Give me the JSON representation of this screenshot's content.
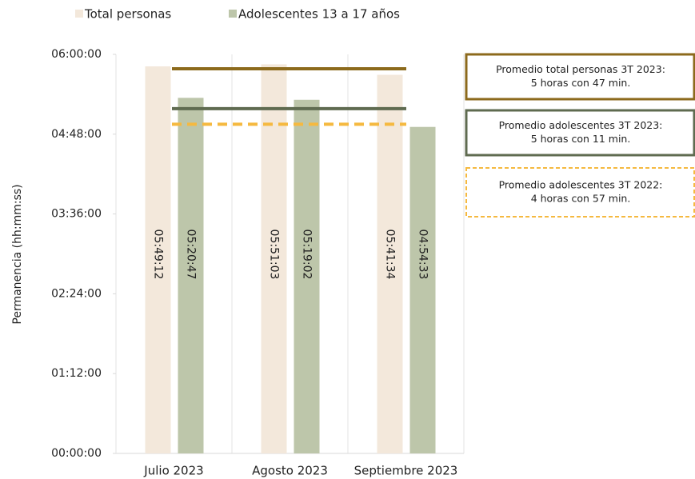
{
  "chart_data": {
    "type": "bar",
    "categories": [
      "Julio 2023",
      "Agosto 2023",
      "Septiembre 2023"
    ],
    "series": [
      {
        "name": "Total personas",
        "color": "#f3e8db",
        "values": [
          20952,
          21063,
          20494
        ],
        "value_labels": [
          "05:49:12",
          "05:51:03",
          "05:41:34"
        ]
      },
      {
        "name": "Adolescentes 13 a 17 años",
        "color": "#bdc6aa",
        "values": [
          19247,
          19142,
          17673
        ],
        "value_labels": [
          "05:20:47",
          "05:19:02",
          "04:54:33"
        ]
      }
    ],
    "y_label": "Permanencia (hh:mm:ss)",
    "ylim": [
      0,
      21600
    ],
    "yticks": [
      {
        "value": 0,
        "label": "00:00:00"
      },
      {
        "value": 4320,
        "label": "01:12:00"
      },
      {
        "value": 8640,
        "label": "02:24:00"
      },
      {
        "value": 12960,
        "label": "03:36:00"
      },
      {
        "value": 17280,
        "label": "04:48:00"
      },
      {
        "value": 21600,
        "label": "06:00:00"
      }
    ],
    "reference_lines": [
      {
        "value": 20820,
        "color": "#8c6a1c",
        "dashed": false,
        "label": [
          "Promedio total personas 3T 2023:",
          "5 horas con 47 min."
        ]
      },
      {
        "value": 18660,
        "color": "#5f6b50",
        "dashed": false,
        "label": [
          "Promedio adolescentes 3T 2023:",
          "5 horas con 11 min."
        ]
      },
      {
        "value": 17820,
        "color": "#f5b940",
        "dashed": true,
        "label": [
          "Promedio adolescentes 3T 2022:",
          "4 horas con 57 min."
        ]
      }
    ],
    "legend": "top"
  }
}
